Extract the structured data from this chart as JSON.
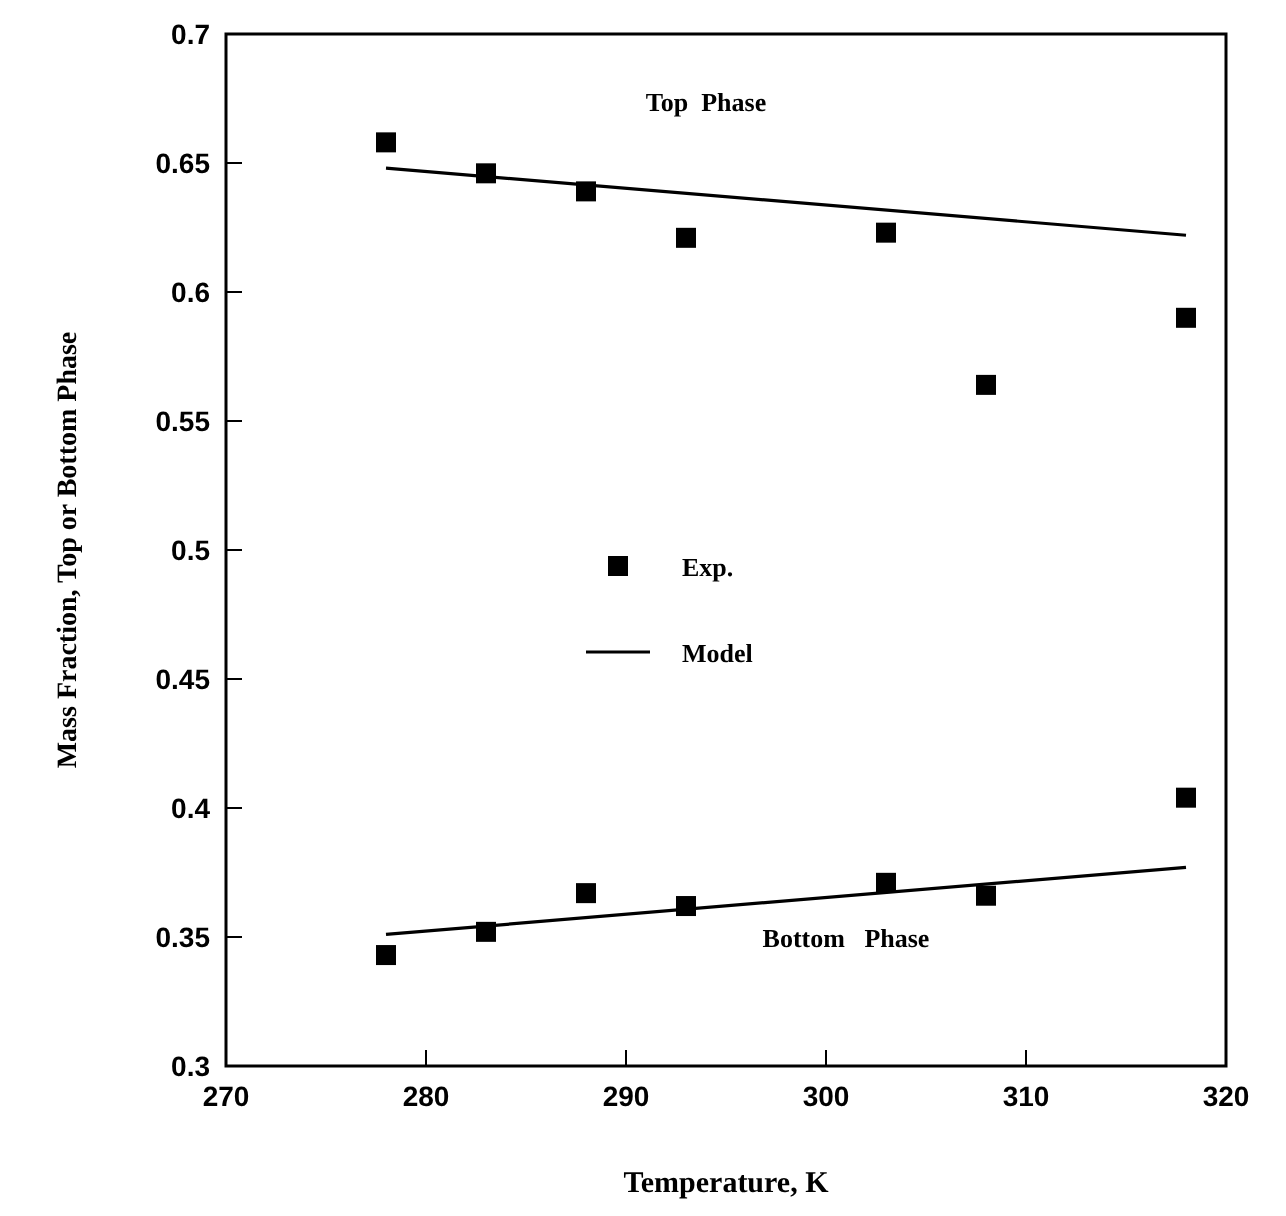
{
  "chart_data": {
    "type": "scatter",
    "xlabel": "Temperature,  K",
    "ylabel": "Mass Fraction, Top or Bottom Phase",
    "xlim": [
      270,
      320
    ],
    "xticks": [
      270,
      280,
      290,
      300,
      310,
      320
    ],
    "ylim": [
      0.3,
      0.7
    ],
    "yticks": [
      0.3,
      0.35,
      0.4,
      0.45,
      0.5,
      0.55,
      0.6,
      0.65,
      0.7
    ],
    "grid": false,
    "legend": "center",
    "series": [
      {
        "name": "Exp.",
        "marker": "square",
        "color": "#000000",
        "x": [
          278,
          283,
          288,
          293,
          303,
          308,
          318
        ],
        "values": [
          0.658,
          0.646,
          0.639,
          0.621,
          0.623,
          0.564,
          0.59
        ]
      },
      {
        "marker": "square",
        "color": "#000000",
        "x": [
          278,
          283,
          288,
          293,
          303,
          308,
          318
        ],
        "values": [
          0.343,
          0.352,
          0.367,
          0.362,
          0.371,
          0.366,
          0.404
        ]
      },
      {
        "name": "Model",
        "type": "line",
        "marker": "none",
        "color": "#000000",
        "line_style": "solid",
        "x": [
          278,
          318
        ],
        "values": [
          0.648,
          0.622
        ]
      },
      {
        "type": "line",
        "marker": "none",
        "color": "#000000",
        "line_style": "solid",
        "x": [
          278,
          318
        ],
        "values": [
          0.351,
          0.377
        ]
      }
    ],
    "annotations": [
      "Top  Phase",
      "Bottom   Phase"
    ]
  }
}
